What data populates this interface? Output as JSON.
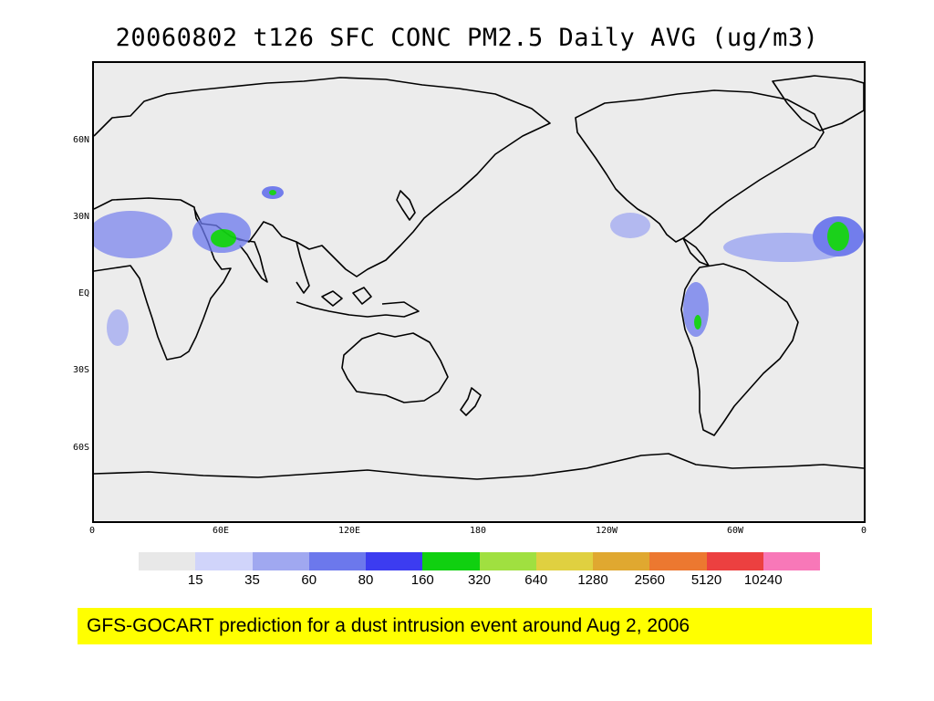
{
  "map": {
    "title": "20060802 t126 SFC CONC PM2.5 Daily AVG (ug/m3)",
    "lat_labels": [
      "60N",
      "30N",
      "EQ",
      "30S",
      "60S"
    ],
    "lon_labels": [
      "0",
      "60E",
      "120E",
      "180",
      "120W",
      "60W",
      "0"
    ],
    "colorbar": {
      "colors": [
        "#e8e8e8",
        "#d0d4fa",
        "#a0a8f0",
        "#6c78ec",
        "#3c3cf0",
        "#10d010",
        "#a0e040",
        "#e0d040",
        "#e0a830",
        "#ec7830",
        "#ec4040",
        "#f878b8"
      ],
      "labels": [
        "15",
        "35",
        "60",
        "80",
        "160",
        "320",
        "640",
        "1280",
        "2560",
        "5120",
        "10240"
      ]
    },
    "caption": "GFS-GOCART prediction for a dust intrusion event around Aug 2, 2006"
  }
}
